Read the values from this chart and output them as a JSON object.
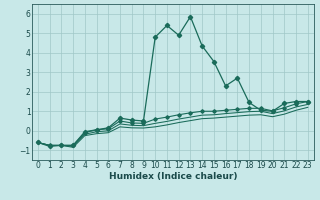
{
  "title": "",
  "xlabel": "Humidex (Indice chaleur)",
  "ylabel": "",
  "background_color": "#c8e8e8",
  "grid_color": "#a0c8c8",
  "line_color": "#1a6b5a",
  "xlim": [
    -0.5,
    23.5
  ],
  "ylim": [
    -1.5,
    6.5
  ],
  "xticks": [
    0,
    1,
    2,
    3,
    4,
    5,
    6,
    7,
    8,
    9,
    10,
    11,
    12,
    13,
    14,
    15,
    16,
    17,
    18,
    19,
    20,
    21,
    22,
    23
  ],
  "yticks": [
    -1,
    0,
    1,
    2,
    3,
    4,
    5,
    6
  ],
  "x": [
    0,
    1,
    2,
    3,
    4,
    5,
    6,
    7,
    8,
    9,
    10,
    11,
    12,
    13,
    14,
    15,
    16,
    17,
    18,
    19,
    20,
    21,
    22,
    23
  ],
  "line1_y": [
    -0.6,
    -0.8,
    -0.75,
    -0.75,
    -0.05,
    0.05,
    0.15,
    0.65,
    0.55,
    0.5,
    4.8,
    5.4,
    4.9,
    5.85,
    4.35,
    3.55,
    2.3,
    2.7,
    1.45,
    1.05,
    1.0,
    1.4,
    1.5,
    1.5
  ],
  "line2_y": [
    -0.6,
    -0.75,
    -0.75,
    -0.75,
    -0.1,
    0.05,
    0.1,
    0.5,
    0.4,
    0.38,
    0.6,
    0.7,
    0.82,
    0.92,
    1.0,
    1.0,
    1.05,
    1.1,
    1.15,
    1.15,
    1.02,
    1.18,
    1.38,
    1.5
  ],
  "line3_y": [
    -0.6,
    -0.75,
    -0.75,
    -0.8,
    -0.18,
    -0.05,
    0.0,
    0.35,
    0.28,
    0.26,
    0.38,
    0.48,
    0.6,
    0.7,
    0.8,
    0.82,
    0.88,
    0.93,
    0.98,
    1.0,
    0.88,
    1.02,
    1.22,
    1.35
  ],
  "line4_y": [
    -0.6,
    -0.75,
    -0.75,
    -0.85,
    -0.25,
    -0.15,
    -0.1,
    0.2,
    0.15,
    0.14,
    0.2,
    0.3,
    0.42,
    0.52,
    0.62,
    0.65,
    0.7,
    0.75,
    0.8,
    0.82,
    0.72,
    0.85,
    1.05,
    1.2
  ]
}
